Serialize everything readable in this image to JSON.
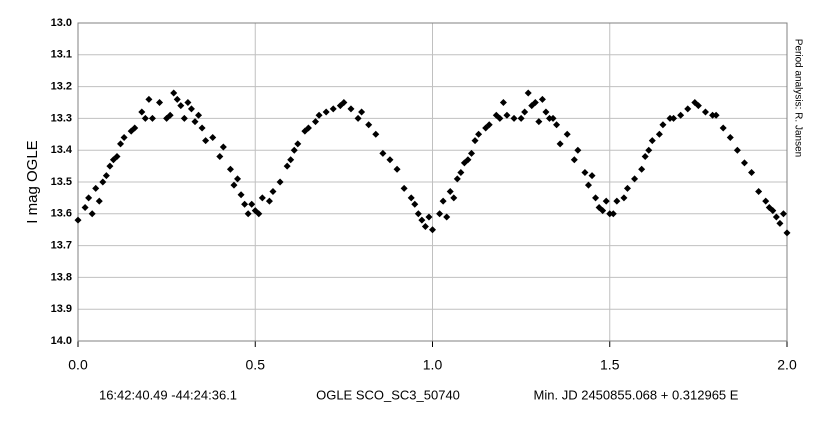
{
  "chart_data": {
    "type": "scatter",
    "ylabel": "I mag OGLE",
    "side_note": "Period analysis:  R. Jansen",
    "footer": [
      "16:42:40.49 -44:24:36.1",
      "OGLE SCO_SC3_50740",
      "Min. JD 2450855.068 + 0.312965 E"
    ],
    "xlim": [
      0,
      2
    ],
    "xticks": [
      {
        "value": 0,
        "label": "0.0"
      },
      0.5,
      {
        "value": 1,
        "label": "1.0"
      },
      1.5,
      {
        "value": 2,
        "label": "2.0"
      }
    ],
    "ylim": [
      13,
      14
    ],
    "y_inverted": true,
    "yticks": [
      {
        "value": 13,
        "label": "13.0"
      },
      13.1,
      13.2,
      13.3,
      13.4,
      13.5,
      13.6,
      13.7,
      13.8,
      13.9,
      {
        "value": 14,
        "label": "14.0"
      }
    ],
    "grid": true,
    "color": "#000000",
    "x": [
      0.0,
      0.02,
      0.03,
      0.04,
      0.05,
      0.06,
      0.07,
      0.08,
      0.09,
      0.1,
      0.11,
      0.12,
      0.13,
      0.15,
      0.16,
      0.18,
      0.19,
      0.2,
      0.21,
      0.23,
      0.25,
      0.26,
      0.27,
      0.28,
      0.29,
      0.3,
      0.31,
      0.32,
      0.33,
      0.34,
      0.35,
      0.36,
      0.38,
      0.4,
      0.41,
      0.43,
      0.44,
      0.45,
      0.46,
      0.47,
      0.48,
      0.49,
      0.5,
      0.51,
      0.52,
      0.54,
      0.55,
      0.57,
      0.59,
      0.6,
      0.61,
      0.62,
      0.64,
      0.65,
      0.67,
      0.68,
      0.7,
      0.72,
      0.74,
      0.75,
      0.77,
      0.79,
      0.8,
      0.82,
      0.84,
      0.86,
      0.88,
      0.9,
      0.92,
      0.94,
      0.95,
      0.96,
      0.97,
      0.98,
      0.99,
      1.0,
      1.02,
      1.03,
      1.04,
      1.05,
      1.06,
      1.07,
      1.08,
      1.09,
      1.1,
      1.11,
      1.12,
      1.13,
      1.15,
      1.16,
      1.18,
      1.19,
      1.2,
      1.21,
      1.23,
      1.25,
      1.26,
      1.27,
      1.28,
      1.29,
      1.3,
      1.31,
      1.32,
      1.33,
      1.34,
      1.35,
      1.36,
      1.38,
      1.4,
      1.41,
      1.43,
      1.44,
      1.45,
      1.46,
      1.47,
      1.48,
      1.49,
      1.5,
      1.51,
      1.52,
      1.54,
      1.55,
      1.57,
      1.59,
      1.6,
      1.61,
      1.62,
      1.64,
      1.65,
      1.67,
      1.68,
      1.7,
      1.72,
      1.74,
      1.75,
      1.77,
      1.79,
      1.8,
      1.82,
      1.84,
      1.86,
      1.88,
      1.9,
      1.92,
      1.94,
      1.95,
      1.96,
      1.97,
      1.98,
      1.99,
      2.0
    ],
    "values": [
      13.62,
      13.58,
      13.55,
      13.6,
      13.52,
      13.56,
      13.5,
      13.48,
      13.45,
      13.43,
      13.42,
      13.38,
      13.36,
      13.34,
      13.33,
      13.28,
      13.3,
      13.24,
      13.3,
      13.25,
      13.3,
      13.29,
      13.22,
      13.24,
      13.26,
      13.3,
      13.25,
      13.27,
      13.31,
      13.29,
      13.33,
      13.37,
      13.36,
      13.42,
      13.39,
      13.46,
      13.51,
      13.49,
      13.54,
      13.57,
      13.6,
      13.57,
      13.59,
      13.6,
      13.55,
      13.56,
      13.53,
      13.5,
      13.45,
      13.43,
      13.4,
      13.38,
      13.34,
      13.33,
      13.31,
      13.29,
      13.28,
      13.27,
      13.26,
      13.25,
      13.27,
      13.3,
      13.28,
      13.32,
      13.35,
      13.41,
      13.43,
      13.46,
      13.52,
      13.55,
      13.57,
      13.6,
      13.62,
      13.64,
      13.61,
      13.65,
      13.6,
      13.56,
      13.61,
      13.53,
      13.55,
      13.49,
      13.47,
      13.44,
      13.43,
      13.41,
      13.37,
      13.35,
      13.33,
      13.32,
      13.29,
      13.3,
      13.25,
      13.29,
      13.3,
      13.3,
      13.28,
      13.22,
      13.26,
      13.25,
      13.31,
      13.24,
      13.28,
      13.3,
      13.3,
      13.32,
      13.38,
      13.35,
      13.43,
      13.4,
      13.47,
      13.51,
      13.48,
      13.55,
      13.58,
      13.59,
      13.56,
      13.6,
      13.6,
      13.56,
      13.55,
      13.52,
      13.49,
      13.46,
      13.42,
      13.4,
      13.37,
      13.35,
      13.32,
      13.3,
      13.3,
      13.29,
      13.27,
      13.25,
      13.26,
      13.28,
      13.29,
      13.29,
      13.33,
      13.36,
      13.4,
      13.44,
      13.47,
      13.53,
      13.56,
      13.58,
      13.59,
      13.61,
      13.63,
      13.6,
      13.66
    ]
  }
}
